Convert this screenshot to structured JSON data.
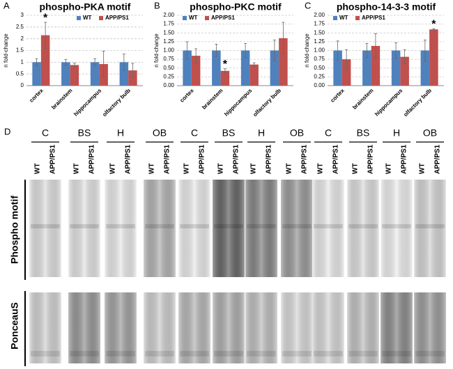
{
  "chart_data": [
    {
      "type": "bar",
      "panel": "A",
      "title": "phospho-PKA motif",
      "ylabel": "n fold-change",
      "categories": [
        "cortex",
        "brainstem",
        "hippocampus",
        "olfactory bulb"
      ],
      "ylim": [
        0,
        3
      ],
      "yticks": [
        0,
        0.5,
        1,
        1.5,
        2,
        2.5,
        3
      ],
      "grid": true,
      "legend": "upper right",
      "marker_text": "*",
      "series": [
        {
          "name": "WT",
          "color": "#4f81bd",
          "values": [
            1,
            1,
            1,
            1
          ],
          "errors": [
            0.15,
            0.12,
            0.15,
            0.35
          ]
        },
        {
          "name": "APP/PS1",
          "color": "#c0504d",
          "values": [
            2.15,
            0.88,
            0.92,
            0.65
          ],
          "errors": [
            0.55,
            0.08,
            0.55,
            0.3
          ],
          "significant": [
            true,
            false,
            false,
            false
          ]
        }
      ]
    },
    {
      "type": "bar",
      "panel": "B",
      "title": "phospho-PKC motif",
      "ylabel": "n fold-change",
      "categories": [
        "cortex",
        "brainstem",
        "hippocampus",
        "olfactory bulb"
      ],
      "ylim": [
        0,
        2
      ],
      "yticks": [
        {
          "value": 0,
          "label": "0.00"
        },
        {
          "value": 0.25,
          "label": "0.25"
        },
        {
          "value": 0.5,
          "label": "0.50"
        },
        {
          "value": 0.75,
          "label": "0.75"
        },
        {
          "value": 1,
          "label": "1.00"
        },
        {
          "value": 1.25,
          "label": "1.25"
        },
        {
          "value": 1.5,
          "label": "1.50"
        },
        {
          "value": 1.75,
          "label": "1.75"
        },
        {
          "value": 2,
          "label": "2.00"
        }
      ],
      "grid": true,
      "legend": "upper left",
      "marker_text": "*",
      "series": [
        {
          "name": "WT",
          "color": "#4f81bd",
          "values": [
            1,
            1,
            1,
            1
          ],
          "errors": [
            0.25,
            0.18,
            0.2,
            0.3
          ]
        },
        {
          "name": "APP/PS1",
          "color": "#c0504d",
          "values": [
            0.85,
            0.42,
            0.6,
            1.35
          ],
          "errors": [
            0.2,
            0.06,
            0.05,
            0.45
          ],
          "significant": [
            false,
            true,
            false,
            false
          ]
        }
      ]
    },
    {
      "type": "bar",
      "panel": "C",
      "title": "phospho-14-3-3 motif",
      "ylabel": "n fold-change",
      "categories": [
        "cortex",
        "brainstem",
        "hippocampus",
        "olfactory bulb"
      ],
      "ylim": [
        0,
        2
      ],
      "yticks": [
        {
          "value": 0,
          "label": "0.00"
        },
        {
          "value": 0.25,
          "label": "0.25"
        },
        {
          "value": 0.5,
          "label": "0.50"
        },
        {
          "value": 0.75,
          "label": "0.75"
        },
        {
          "value": 1,
          "label": "1.00"
        },
        {
          "value": 1.25,
          "label": "1.25"
        },
        {
          "value": 1.5,
          "label": "1.50"
        },
        {
          "value": 1.75,
          "label": "1.75"
        },
        {
          "value": 2,
          "label": "2.00"
        }
      ],
      "grid": true,
      "legend": "upper left",
      "marker_text": "*",
      "series": [
        {
          "name": "WT",
          "color": "#4f81bd",
          "values": [
            1,
            1,
            1,
            1
          ],
          "errors": [
            0.27,
            0.2,
            0.22,
            0.3
          ]
        },
        {
          "name": "APP/PS1",
          "color": "#c0504d",
          "values": [
            0.75,
            1.13,
            0.82,
            1.6
          ],
          "errors": [
            0.27,
            0.35,
            0.2,
            0.02
          ],
          "significant": [
            false,
            false,
            false,
            true
          ]
        }
      ]
    }
  ],
  "blot": {
    "panel": "D",
    "groups": [
      "C",
      "BS",
      "H",
      "OB",
      "C",
      "BS",
      "H",
      "OB",
      "C",
      "BS",
      "H",
      "OB"
    ],
    "lanes": [
      "WT",
      "APP/PS1"
    ],
    "rows": [
      "Phospho motif",
      "PonceauS"
    ]
  }
}
